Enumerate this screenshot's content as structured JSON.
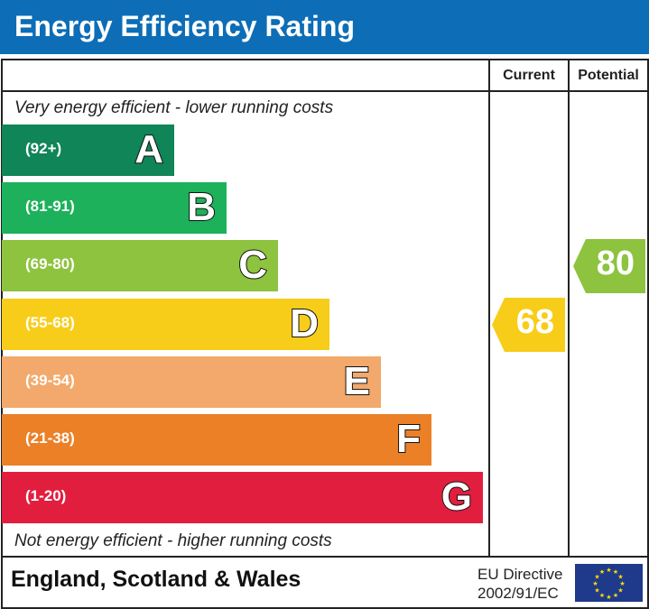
{
  "header": {
    "title": "Energy Efficiency Rating"
  },
  "columns": {
    "current": "Current",
    "potential": "Potential"
  },
  "notes": {
    "top": "Very energy efficient - lower running costs",
    "bottom": "Not energy efficient - higher running costs"
  },
  "footer": {
    "region": "England, Scotland & Wales",
    "directive_line1": "EU Directive",
    "directive_line2": "2002/91/EC",
    "flag_icon": "eu-flag-icon"
  },
  "chart_data": {
    "type": "bar",
    "categories": [
      "A",
      "B",
      "C",
      "D",
      "E",
      "F",
      "G"
    ],
    "ranges": [
      "(92+)",
      "(81-91)",
      "(69-80)",
      "(55-68)",
      "(39-54)",
      "(21-38)",
      "(1-20)"
    ],
    "colors": [
      "#0f8558",
      "#1cb15a",
      "#8dc33f",
      "#f7cd1a",
      "#f2a96b",
      "#eb8027",
      "#e21e3f"
    ],
    "current": {
      "value": 68,
      "band": "D",
      "color": "#f7cd1a"
    },
    "potential": {
      "value": 80,
      "band": "C",
      "color": "#8dc33f"
    }
  }
}
